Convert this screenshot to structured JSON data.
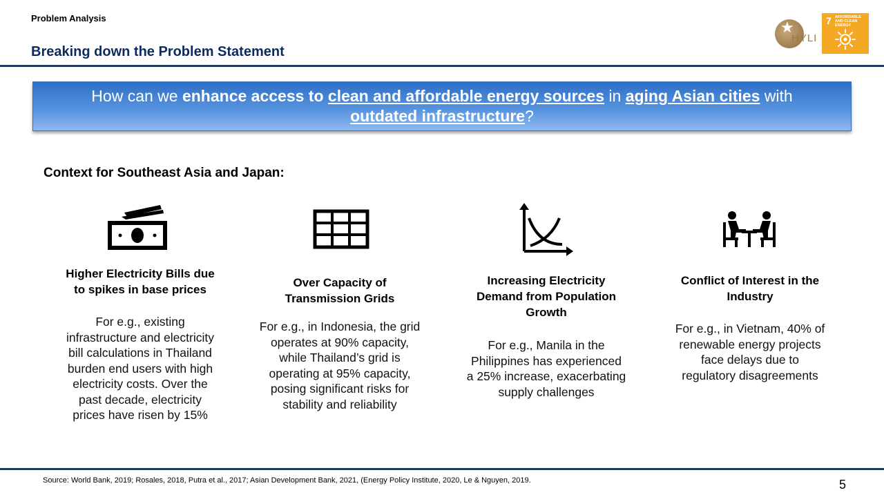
{
  "header": {
    "section_label": "Problem Analysis",
    "title": "Breaking down the Problem Statement",
    "logo_text": "HYLI",
    "sdg_number": "7",
    "sdg_label": "AFFORDABLE AND CLEAN ENERGY",
    "sdg_color": "#f5a823"
  },
  "question": {
    "p1": "How can we ",
    "p2": "enhance access to ",
    "p3": "clean and affordable energy sources",
    "p4": " in ",
    "p5": "aging Asian cities",
    "p6": " with",
    "p7": "outdated infrastructure",
    "p8": "?"
  },
  "context_heading": "Context for Southeast Asia and Japan:",
  "columns": [
    {
      "icon": "money-icon",
      "head_lines": [
        "Higher Electricity Bills due",
        "to spikes in base prices"
      ],
      "body_lines": [
        "For e.g., existing",
        "infrastructure and electricity",
        "bill calculations in Thailand",
        "burden end users with high",
        "electricity costs. Over the",
        "past decade, electricity",
        "prices have risen by 15%"
      ]
    },
    {
      "icon": "grid-icon",
      "head_lines": [
        "Over Capacity of",
        "Transmission Grids"
      ],
      "body_lines": [
        "For e.g., in Indonesia, the grid",
        "operates at 90% capacity,",
        "while Thailand’s grid is",
        "operating at 95% capacity,",
        "posing significant risks for",
        "stability and reliability"
      ]
    },
    {
      "icon": "demand-curve-icon",
      "head_lines": [
        "Increasing Electricity",
        "Demand from Population",
        "Growth"
      ],
      "body_lines": [
        "For e.g., Manila in the",
        "Philippines has experienced",
        "a 25% increase, exacerbating",
        "supply challenges"
      ]
    },
    {
      "icon": "negotiation-icon",
      "head_lines": [
        "Conflict of Interest in the",
        "Industry"
      ],
      "body_lines": [
        "For e.g., in Vietnam, 40% of",
        "renewable energy projects",
        "face delays due to",
        "regulatory disagreements"
      ]
    }
  ],
  "footer": {
    "source": "Source: World Bank, 2019; Rosales, 2018, Putra et al., 2017; Asian Development Bank, 2021, (Energy Policy Institute, 2020, Le & Nguyen, 2019.",
    "page_number": "5"
  },
  "colors": {
    "title_navy": "#0d2a5e",
    "rule": "#1f3a5f",
    "question_blue": "#2d6fc7"
  }
}
